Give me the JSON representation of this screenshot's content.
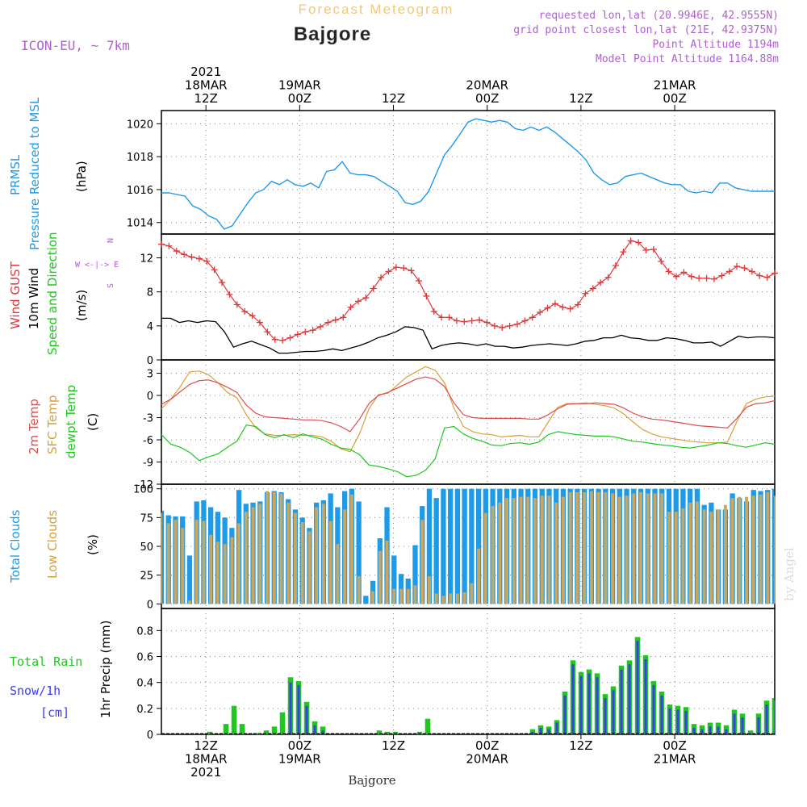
{
  "header": {
    "product": "Forecast Meteogram",
    "location": "Bajgore",
    "model": "ICON-EU, ~ 7km",
    "requested": "requested lon,lat (20.9946E, 42.9555N)",
    "grid_point": "grid point closest lon,lat (21E, 42.9375N)",
    "point_altitude": "Point Altitude 1194m",
    "model_altitude": "Model Point Altitude 1164.88m",
    "watermark": "by Angel",
    "footer": "Bajgore"
  },
  "colors": {
    "pressure": "#1e9be8",
    "gust": "#e0383a",
    "wind": "#000000",
    "temp": "#e24a4a",
    "sfc_temp": "#d9a03a",
    "dewpt": "#1ec81e",
    "total_cloud": "#1e9be8",
    "low_cloud": "#c8a860",
    "rain": "#1ec81e",
    "snow": "#3c3cf0",
    "header_meta": "#b060d0",
    "header_product": "#f0c880"
  },
  "time_axis": {
    "top_labels": [
      {
        "t": 12,
        "lines": [
          "2021",
          "18MAR",
          "12Z"
        ]
      },
      {
        "t": 24,
        "lines": [
          "19MAR",
          "00Z"
        ]
      },
      {
        "t": 36,
        "lines": [
          "12Z"
        ]
      },
      {
        "t": 48,
        "lines": [
          "20MAR",
          "00Z"
        ]
      },
      {
        "t": 60,
        "lines": [
          "12Z"
        ]
      },
      {
        "t": 72,
        "lines": [
          "21MAR",
          "00Z"
        ]
      }
    ],
    "bottom_labels": [
      {
        "t": 12,
        "lines": [
          "12Z",
          "18MAR",
          "2021"
        ]
      },
      {
        "t": 24,
        "lines": [
          "00Z",
          "19MAR"
        ]
      },
      {
        "t": 36,
        "lines": [
          "12Z"
        ]
      },
      {
        "t": 48,
        "lines": [
          "00Z",
          "20MAR"
        ]
      },
      {
        "t": 60,
        "lines": [
          "12Z"
        ]
      },
      {
        "t": 72,
        "lines": [
          "00Z",
          "21MAR"
        ]
      }
    ]
  },
  "chart_data": [
    {
      "type": "line",
      "panel": "pressure",
      "ylabel_lines": [
        "PRMSL",
        "Pressure Reduced to MSL"
      ],
      "unit": "(hPa)",
      "ylim": [
        1013.3,
        1020.8
      ],
      "yticks": [
        1014,
        1016,
        1018,
        1020
      ],
      "x_start": 6.3,
      "x_end": 84.8,
      "series": [
        {
          "values": [
            1015.8,
            1015.8,
            1015.7,
            1015.6,
            1015.0,
            1014.8,
            1014.4,
            1014.2,
            1013.6,
            1013.8,
            1014.5,
            1015.2,
            1015.8,
            1016.0,
            1016.5,
            1016.3,
            1016.6,
            1016.3,
            1016.2,
            1016.4,
            1016.1,
            1017.1,
            1017.2,
            1017.7,
            1017.0,
            1016.9,
            1016.9,
            1016.8,
            1016.5,
            1016.2,
            1015.9,
            1015.2,
            1015.1,
            1015.3,
            1015.9,
            1017.0,
            1018.1,
            1018.7,
            1019.4,
            1020.1,
            1020.3,
            1020.2,
            1020.1,
            1020.2,
            1020.1,
            1019.7,
            1019.6,
            1019.8,
            1019.6,
            1019.8,
            1019.5,
            1019.1,
            1018.7,
            1018.3,
            1017.8,
            1017.0,
            1016.6,
            1016.3,
            1016.4,
            1016.8,
            1016.9,
            1017.0,
            1016.8,
            1016.6,
            1016.4,
            1016.3,
            1016.3,
            1015.9,
            1015.8,
            1015.9,
            1015.8,
            1016.4,
            1016.4,
            1016.1,
            1016.0,
            1015.9,
            1015.9,
            1015.9,
            1015.9
          ]
        }
      ]
    },
    {
      "type": "line",
      "panel": "wind",
      "ylabel_lines": [
        "Wind GUST",
        "10m Wind",
        "Speed and Direction"
      ],
      "unit": "(m/s)",
      "compass": [
        "N",
        "W <-|-> E",
        "S"
      ],
      "ylim": [
        0,
        14.8
      ],
      "yticks": [
        0,
        4,
        8,
        12
      ],
      "x_start": 6.3,
      "x_end": 84.8,
      "series": [
        {
          "name": "Wind GUST",
          "values": [
            13.6,
            13.4,
            12.8,
            12.4,
            12.1,
            11.9,
            11.6,
            10.6,
            9.1,
            7.7,
            6.5,
            5.7,
            5.2,
            4.4,
            3.3,
            2.4,
            2.3,
            2.6,
            3.0,
            3.3,
            3.5,
            3.9,
            4.4,
            4.7,
            5.0,
            6.2,
            6.9,
            7.3,
            8.4,
            9.7,
            10.4,
            10.9,
            10.8,
            10.5,
            9.3,
            7.5,
            5.7,
            5.0,
            5.0,
            4.6,
            4.5,
            4.6,
            4.7,
            4.4,
            4.0,
            3.8,
            4.0,
            4.2,
            4.6,
            5.0,
            5.6,
            6.1,
            6.6,
            6.2,
            6.0,
            6.5,
            7.8,
            8.4,
            9.1,
            9.7,
            11.1,
            12.7,
            14.0,
            13.8,
            12.9,
            13.0,
            11.6,
            10.4,
            9.8,
            10.3,
            9.8,
            9.6,
            9.6,
            9.5,
            9.9,
            10.4,
            11.0,
            10.8,
            10.4,
            9.9,
            9.7,
            10.2
          ]
        },
        {
          "name": "10m Wind",
          "values": [
            4.9,
            4.9,
            4.4,
            4.6,
            4.4,
            4.6,
            4.5,
            3.3,
            1.5,
            1.9,
            2.2,
            1.8,
            1.4,
            0.8,
            0.8,
            0.9,
            1.0,
            1.0,
            1.1,
            1.3,
            1.1,
            1.4,
            1.7,
            2.1,
            2.6,
            2.9,
            3.3,
            3.9,
            3.8,
            3.5,
            1.3,
            1.7,
            1.9,
            2.0,
            1.9,
            1.7,
            1.9,
            1.6,
            1.6,
            1.4,
            1.5,
            1.7,
            1.8,
            1.9,
            1.8,
            1.7,
            1.9,
            2.2,
            2.3,
            2.6,
            2.6,
            2.9,
            2.6,
            2.5,
            2.3,
            2.3,
            2.6,
            2.5,
            2.3,
            2.0,
            2.0,
            2.1,
            1.6,
            2.2,
            2.8,
            2.6,
            2.7,
            2.7,
            2.6
          ]
        }
      ]
    },
    {
      "type": "line",
      "panel": "temperature",
      "ylabel_lines": [
        "2m Temp",
        "SFC Temp",
        "dewpt Temp"
      ],
      "unit": "(C)",
      "ylim": [
        -12,
        4.8
      ],
      "yticks": [
        -12,
        -9,
        -6,
        -3,
        0,
        3
      ],
      "x_start": 6.3,
      "x_end": 84.8,
      "series": [
        {
          "name": "2m Temp",
          "values": [
            -1.2,
            -0.5,
            0.5,
            1.5,
            2.0,
            2.1,
            1.7,
            1.1,
            0.4,
            -1.3,
            -2.4,
            -2.9,
            -3.0,
            -3.1,
            -3.2,
            -3.3,
            -3.3,
            -3.4,
            -3.7,
            -4.2,
            -4.9,
            -3.2,
            -1.1,
            0.0,
            0.4,
            1.0,
            1.6,
            2.2,
            2.5,
            2.2,
            1.2,
            -1.0,
            -2.6,
            -3.0,
            -3.1,
            -3.1,
            -3.1,
            -3.1,
            -3.1,
            -3.2,
            -3.2,
            -2.6,
            -1.8,
            -1.2,
            -1.1,
            -1.1,
            -1.0,
            -1.1,
            -1.2,
            -1.7,
            -2.4,
            -2.9,
            -3.2,
            -3.3,
            -3.5,
            -3.7,
            -3.9,
            -4.1,
            -4.2,
            -4.3,
            -4.4,
            -3.1,
            -1.6,
            -1.1,
            -1.0,
            -0.7
          ]
        },
        {
          "name": "SFC Temp",
          "values": [
            -1.8,
            -0.5,
            1.2,
            3.2,
            3.3,
            2.8,
            1.7,
            0.4,
            -0.3,
            -2.6,
            -4.4,
            -5.2,
            -5.4,
            -5.4,
            -5.3,
            -5.4,
            -5.4,
            -5.6,
            -6.2,
            -7.2,
            -7.6,
            -5.2,
            -1.8,
            0.1,
            0.3,
            1.4,
            2.5,
            3.2,
            3.9,
            3.4,
            1.7,
            -1.7,
            -4.2,
            -4.9,
            -5.2,
            -5.3,
            -5.6,
            -5.5,
            -5.4,
            -5.6,
            -5.6,
            -3.6,
            -1.6,
            -1.1,
            -1.1,
            -1.0,
            -1.2,
            -1.4,
            -1.7,
            -2.5,
            -3.6,
            -4.6,
            -5.2,
            -5.6,
            -5.8,
            -6.0,
            -6.2,
            -6.3,
            -6.4,
            -6.4,
            -6.3,
            -3.5,
            -1.1,
            -0.5,
            -0.2,
            -0.1
          ]
        },
        {
          "name": "dewpt Temp",
          "values": [
            -5.3,
            -6.6,
            -7.0,
            -7.7,
            -8.8,
            -8.3,
            -7.9,
            -7.0,
            -6.2,
            -4.0,
            -4.2,
            -5.3,
            -5.7,
            -5.3,
            -5.7,
            -5.2,
            -5.6,
            -5.9,
            -6.6,
            -7.1,
            -7.3,
            -8.0,
            -9.4,
            -9.6,
            -9.9,
            -10.3,
            -11.0,
            -10.8,
            -10.1,
            -8.6,
            -4.4,
            -4.2,
            -5.2,
            -5.8,
            -6.2,
            -6.7,
            -6.8,
            -6.5,
            -6.4,
            -6.6,
            -6.3,
            -5.3,
            -4.9,
            -5.1,
            -5.3,
            -5.4,
            -5.5,
            -5.5,
            -5.6,
            -5.9,
            -6.2,
            -6.3,
            -6.5,
            -6.7,
            -6.8,
            -7.0,
            -7.1,
            -6.9,
            -6.7,
            -6.4,
            -6.5,
            -6.8,
            -7.0,
            -6.7,
            -6.4,
            -6.6
          ]
        }
      ]
    },
    {
      "type": "bar",
      "panel": "clouds",
      "ylabel_lines": [
        "Total Clouds",
        "Low Clouds"
      ],
      "unit": "(%)",
      "ylim": [
        -4,
        104
      ],
      "yticks": [
        0,
        25,
        50,
        75,
        100
      ],
      "x_start": 6.3,
      "x_end": 84.8,
      "series": [
        {
          "name": "Total Clouds",
          "values": [
            81,
            77,
            76,
            76,
            42,
            89,
            90,
            84,
            80,
            75,
            66,
            99,
            87,
            88,
            89,
            97,
            98,
            97,
            91,
            82,
            75,
            66,
            88,
            90,
            96,
            84,
            98,
            100,
            89,
            7,
            20,
            57,
            84,
            42,
            26,
            22,
            51,
            85,
            100,
            92,
            100,
            100,
            100,
            100,
            100,
            100,
            100,
            100,
            100,
            100,
            100,
            100,
            100,
            100,
            100,
            100,
            100,
            100,
            100,
            100,
            100,
            100,
            100,
            100,
            100,
            100,
            100,
            100,
            100,
            100,
            100,
            100,
            100,
            100,
            100,
            100,
            100,
            86,
            88,
            82,
            82,
            96,
            92,
            89,
            99,
            98,
            99,
            100
          ]
        },
        {
          "name": "Low Clouds",
          "values": [
            79,
            70,
            73,
            66,
            3,
            73,
            72,
            60,
            54,
            52,
            58,
            70,
            80,
            84,
            87,
            98,
            97,
            96,
            88,
            79,
            71,
            63,
            84,
            87,
            72,
            52,
            82,
            95,
            24,
            0,
            11,
            46,
            55,
            13,
            13,
            13,
            16,
            73,
            24,
            9,
            7,
            9,
            9,
            10,
            18,
            48,
            79,
            85,
            88,
            92,
            92,
            93,
            93,
            92,
            94,
            94,
            88,
            93,
            97,
            97,
            97,
            98,
            97,
            97,
            96,
            93,
            94,
            96,
            97,
            96,
            96,
            96,
            80,
            80,
            83,
            88,
            89,
            82,
            80,
            82,
            86,
            92,
            93,
            93,
            94,
            95,
            97,
            94
          ]
        }
      ]
    },
    {
      "type": "bar",
      "panel": "precip",
      "ylabel_lines": [
        "Total Rain",
        "Snow/1h",
        "[cm]"
      ],
      "unit": "1hr Precip (mm)",
      "ylim": [
        0,
        0.97
      ],
      "yticks": [
        0,
        0.2,
        0.4,
        0.6,
        0.8
      ],
      "x_start": 6.3,
      "x_end": 84.8,
      "series": [
        {
          "name": "Total Rain",
          "values": [
            0,
            0,
            0,
            0,
            0,
            0,
            0.02,
            0,
            0.08,
            0.22,
            0.08,
            0,
            0.01,
            0.03,
            0.06,
            0.17,
            0.44,
            0.41,
            0.25,
            0.1,
            0.06,
            0,
            0,
            0,
            0,
            0,
            0,
            0.03,
            0.02,
            0.02,
            0,
            0,
            0.02,
            0.12,
            0,
            0,
            0,
            0,
            0,
            0,
            0,
            0,
            0,
            0,
            0,
            0,
            0.04,
            0.07,
            0.06,
            0.11,
            0.33,
            0.57,
            0.48,
            0.5,
            0.47,
            0.31,
            0.37,
            0.53,
            0.57,
            0.75,
            0.61,
            0.41,
            0.33,
            0.23,
            0.22,
            0.21,
            0.08,
            0.07,
            0.09,
            0.09,
            0.07,
            0.19,
            0.16,
            0.03,
            0.16,
            0.26,
            0.28
          ]
        },
        {
          "name": "Snow/1h",
          "values": [
            0,
            0,
            0,
            0,
            0,
            0,
            0,
            0,
            0,
            0,
            0,
            0,
            0,
            0,
            0,
            0,
            0.4,
            0.38,
            0.22,
            0.07,
            0.03,
            0,
            0,
            0,
            0,
            0,
            0,
            0,
            0,
            0,
            0,
            0,
            0,
            0,
            0,
            0,
            0,
            0,
            0,
            0,
            0,
            0,
            0,
            0,
            0,
            0,
            0.02,
            0.05,
            0.04,
            0.09,
            0.3,
            0.54,
            0.45,
            0.47,
            0.44,
            0.28,
            0.34,
            0.5,
            0.54,
            0.72,
            0.58,
            0.38,
            0.3,
            0.2,
            0.19,
            0.18,
            0.05,
            0.04,
            0.06,
            0.06,
            0.04,
            0.16,
            0.13,
            0.01,
            0.13,
            0.23,
            0.26
          ]
        }
      ]
    }
  ]
}
